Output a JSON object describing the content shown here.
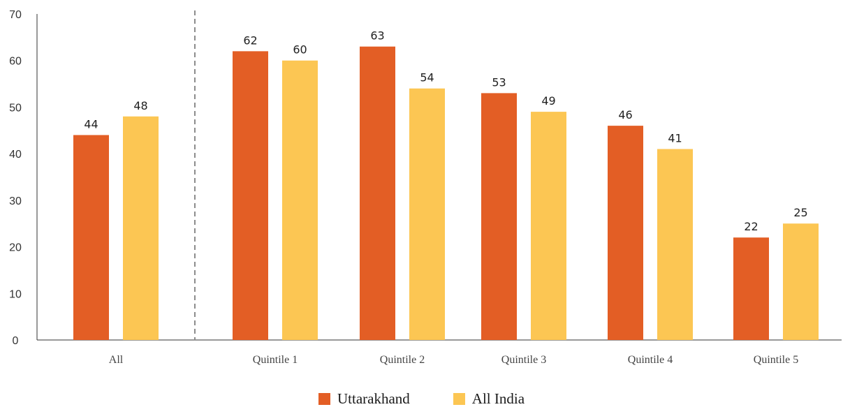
{
  "chart_data": {
    "type": "bar",
    "categories": [
      "All",
      "Quintile 1",
      "Quintile 2",
      "Quintile 3",
      "Quintile 4",
      "Quintile 5"
    ],
    "series": [
      {
        "name": "Uttarakhand",
        "color": "#E35E25",
        "values": [
          44,
          62,
          63,
          53,
          46,
          22
        ]
      },
      {
        "name": "All India",
        "color": "#FCC653",
        "values": [
          48,
          60,
          54,
          49,
          41,
          25
        ]
      }
    ],
    "ylim": [
      0,
      70
    ],
    "yticks": [
      0,
      10,
      20,
      30,
      40,
      50,
      60,
      70
    ],
    "title": "",
    "xlabel": "",
    "ylabel": "",
    "grid": false,
    "separator_after_category": "All",
    "legend_position": "bottom-center"
  }
}
